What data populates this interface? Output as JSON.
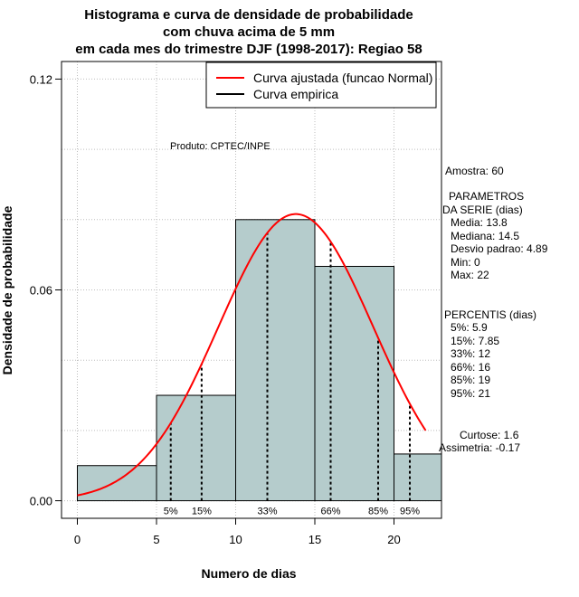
{
  "chart_data": {
    "type": "histogram",
    "title_lines": [
      "Histograma e curva de densidade de probabilidade",
      "com chuva acima de 5 mm",
      "em cada mes do trimestre DJF (1998-2017): Regiao 58"
    ],
    "xlabel": "Numero de dias",
    "ylabel": "Densidade de probabilidade",
    "xlim": [
      -1,
      23
    ],
    "ylim": [
      -0.005,
      0.125
    ],
    "x_ticks": [
      0,
      5,
      10,
      15,
      20
    ],
    "y_ticks": [
      0.0,
      0.06,
      0.12
    ],
    "y_tick_labels": [
      "0.00",
      "0.06",
      "0.12"
    ],
    "grid_x": [
      0,
      5,
      10,
      15,
      20
    ],
    "grid_y": [
      0.0,
      0.02,
      0.04,
      0.06,
      0.08,
      0.1,
      0.12
    ],
    "bins": [
      {
        "x0": 0,
        "x1": 5,
        "density": 0.01
      },
      {
        "x0": 5,
        "x1": 10,
        "density": 0.03
      },
      {
        "x0": 10,
        "x1": 15,
        "density": 0.08
      },
      {
        "x0": 15,
        "x1": 20,
        "density": 0.0667
      },
      {
        "x0": 20,
        "x1": 23,
        "density": 0.0133
      }
    ],
    "bar_color": "#b5cccc",
    "curve_color": "#ff0000",
    "normal_fit": {
      "mean": 13.8,
      "sd": 4.89,
      "x_from": 0,
      "x_to": 22
    },
    "percentile_lines": [
      {
        "label": "5%",
        "x": 5.9
      },
      {
        "label": "15%",
        "x": 7.85
      },
      {
        "label": "33%",
        "x": 12
      },
      {
        "label": "66%",
        "x": 16
      },
      {
        "label": "85%",
        "x": 19
      },
      {
        "label": "95%",
        "x": 21
      }
    ],
    "legend": {
      "placement": "top-right",
      "entries": [
        {
          "label": "Curva ajustada (funcao Normal)",
          "color": "#ff0000"
        },
        {
          "label": "Curva empirica",
          "color": "#000000"
        }
      ]
    },
    "annotation": "Produto: CPTEC/INPE"
  },
  "stats": {
    "sample": "Amostra: 60",
    "params_title_1": "PARAMETROS",
    "params_title_2": "DA SERIE (dias)",
    "media": "Media: 13.8",
    "mediana": "Mediana: 14.5",
    "desvio": "Desvio padrao: 4.89",
    "min": "Min: 0",
    "max": "Max: 22",
    "percentis_title": "PERCENTIS (dias)",
    "p5": "5%: 5.9",
    "p15": "15%: 7.85",
    "p33": "33%: 12",
    "p66": "66%: 16",
    "p85": "85%: 19",
    "p95": "95%: 21",
    "curtose": "Curtose: 1.6",
    "assimetria": "Assimetria: -0.17"
  }
}
